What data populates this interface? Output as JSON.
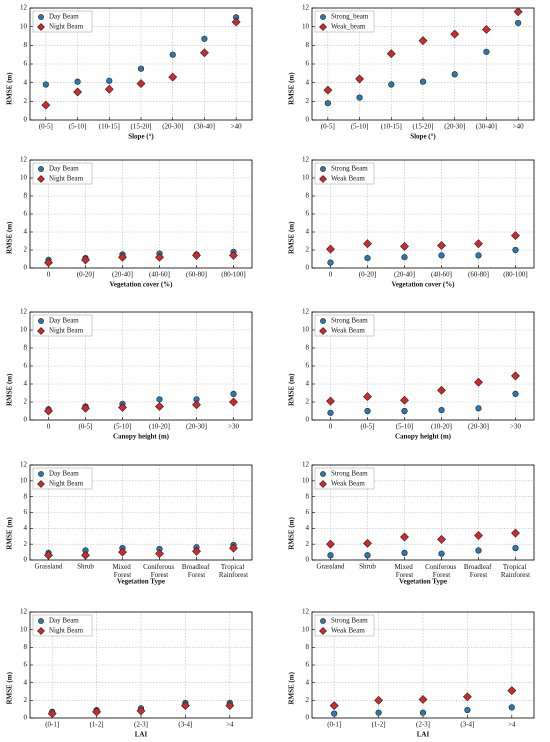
{
  "chart_data": [
    {
      "type": "scatter",
      "x_label": "Slope (°)",
      "y_label": "RMSE (m)",
      "categories": [
        "(0-5]",
        "(5-10]",
        "(10-15]",
        "(15-20]",
        "(20-30]",
        "(30-40]",
        ">40"
      ],
      "ylim": [
        0,
        12
      ],
      "yticks": [
        0,
        2,
        4,
        6,
        8,
        10,
        12
      ],
      "grid": true,
      "legend": "upper left",
      "series": [
        {
          "name": "Day Beam",
          "color": "#2878b5",
          "marker": "circle",
          "values": [
            3.8,
            4.1,
            4.2,
            5.5,
            7.0,
            8.7,
            11.0
          ]
        },
        {
          "name": "Night Beam",
          "color": "#d62728",
          "marker": "diamond",
          "values": [
            1.6,
            3.0,
            3.3,
            3.9,
            4.6,
            7.2,
            10.5
          ]
        }
      ]
    },
    {
      "type": "scatter",
      "x_label": "Slope (°)",
      "y_label": "RMSE (m)",
      "categories": [
        "(0-5]",
        "(5-10]",
        "(10-15]",
        "(15-20]",
        "(20-30]",
        "(30-40]",
        ">40"
      ],
      "ylim": [
        0,
        12
      ],
      "yticks": [
        0,
        2,
        4,
        6,
        8,
        10,
        12
      ],
      "grid": true,
      "legend": "upper left",
      "series": [
        {
          "name": "Strong_beam",
          "color": "#2878b5",
          "marker": "circle",
          "values": [
            1.8,
            2.4,
            3.8,
            4.1,
            4.9,
            7.3,
            10.4
          ]
        },
        {
          "name": "Weak_beam",
          "color": "#d62728",
          "marker": "diamond",
          "values": [
            3.2,
            4.4,
            7.1,
            8.5,
            9.2,
            9.7,
            11.6
          ]
        }
      ]
    },
    {
      "type": "scatter",
      "x_label": "Vegetation cover (%)",
      "y_label": "RMSE (m)",
      "categories": [
        "0",
        "(0-20]",
        "(20-40]",
        "(40-60]",
        "(60-80]",
        "(80-100]"
      ],
      "ylim": [
        0,
        12
      ],
      "yticks": [
        0,
        2,
        4,
        6,
        8,
        10,
        12
      ],
      "grid": true,
      "legend": "upper left",
      "series": [
        {
          "name": "Day Beam",
          "color": "#2878b5",
          "marker": "circle",
          "values": [
            0.9,
            1.1,
            1.5,
            1.6,
            1.5,
            1.8
          ]
        },
        {
          "name": "Night Beam",
          "color": "#d62728",
          "marker": "diamond",
          "values": [
            0.6,
            0.9,
            1.2,
            1.2,
            1.4,
            1.4
          ]
        }
      ]
    },
    {
      "type": "scatter",
      "x_label": "Vegetation cover (%)",
      "y_label": "RMSE (m)",
      "categories": [
        "0",
        "(0-20]",
        "(20-40]",
        "(40-60]",
        "(60-80]",
        "(80-100]"
      ],
      "ylim": [
        0,
        12
      ],
      "yticks": [
        0,
        2,
        4,
        6,
        8,
        10,
        12
      ],
      "grid": true,
      "legend": "upper left",
      "series": [
        {
          "name": "Strong Beam",
          "color": "#2878b5",
          "marker": "circle",
          "values": [
            0.6,
            1.1,
            1.2,
            1.4,
            1.4,
            2.0
          ]
        },
        {
          "name": "Weak Beam",
          "color": "#d62728",
          "marker": "diamond",
          "values": [
            2.1,
            2.7,
            2.4,
            2.5,
            2.7,
            3.6
          ]
        }
      ]
    },
    {
      "type": "scatter",
      "x_label": "Canopy height (m)",
      "y_label": "RMSE (m)",
      "categories": [
        "0",
        "(0-5]",
        "(5-10]",
        "(10-20]",
        "(20-30]",
        ">30"
      ],
      "ylim": [
        0,
        12
      ],
      "yticks": [
        0,
        2,
        4,
        6,
        8,
        10,
        12
      ],
      "grid": true,
      "legend": "upper left",
      "series": [
        {
          "name": "Day Beam",
          "color": "#2878b5",
          "marker": "circle",
          "values": [
            1.2,
            1.5,
            1.8,
            2.3,
            2.3,
            2.9
          ]
        },
        {
          "name": "Night Beam",
          "color": "#d62728",
          "marker": "diamond",
          "values": [
            1.0,
            1.3,
            1.4,
            1.5,
            1.7,
            2.0
          ]
        }
      ]
    },
    {
      "type": "scatter",
      "x_label": "Canopy height (m)",
      "y_label": "RMSE (m)",
      "categories": [
        "0",
        "(0-5]",
        "(5-10]",
        "(10-20]",
        "(20-30]",
        ">30"
      ],
      "ylim": [
        0,
        12
      ],
      "yticks": [
        0,
        2,
        4,
        6,
        8,
        10,
        12
      ],
      "grid": true,
      "legend": "upper left",
      "series": [
        {
          "name": "Strong Beam",
          "color": "#2878b5",
          "marker": "circle",
          "values": [
            0.8,
            1.0,
            1.0,
            1.1,
            1.3,
            2.9
          ]
        },
        {
          "name": "Weak Beam",
          "color": "#d62728",
          "marker": "diamond",
          "values": [
            2.1,
            2.6,
            2.2,
            3.3,
            4.2,
            4.9
          ]
        }
      ]
    },
    {
      "type": "scatter",
      "x_label": "Vegetation Type",
      "y_label": "RMSE (m)",
      "categories": [
        "Grassland",
        "Shrub",
        "Mixed Forest",
        "Coniferous Forest",
        "Broadleaf Forest",
        "Tropical Rainforest"
      ],
      "ylim": [
        0,
        12
      ],
      "yticks": [
        0,
        2,
        4,
        6,
        8,
        10,
        12
      ],
      "grid": true,
      "legend": "upper left",
      "series": [
        {
          "name": "Day Beam",
          "color": "#2878b5",
          "marker": "circle",
          "values": [
            0.9,
            1.2,
            1.5,
            1.4,
            1.6,
            1.9
          ]
        },
        {
          "name": "Night Beam",
          "color": "#d62728",
          "marker": "diamond",
          "values": [
            0.6,
            0.6,
            1.0,
            0.8,
            1.1,
            1.5
          ]
        }
      ]
    },
    {
      "type": "scatter",
      "x_label": "Vegetation Type",
      "y_label": "RMSE (m)",
      "categories": [
        "Grassland",
        "Shrub",
        "Mixed Forest",
        "Coniferous Forest",
        "Broadleaf Forest",
        "Tropical Rainforest"
      ],
      "ylim": [
        0,
        12
      ],
      "yticks": [
        0,
        2,
        4,
        6,
        8,
        10,
        12
      ],
      "grid": true,
      "legend": "upper left",
      "series": [
        {
          "name": "Strong Beam",
          "color": "#2878b5",
          "marker": "circle",
          "values": [
            0.6,
            0.6,
            0.9,
            0.8,
            1.2,
            1.5
          ]
        },
        {
          "name": "Weak Beam",
          "color": "#d62728",
          "marker": "diamond",
          "values": [
            2.0,
            2.1,
            2.9,
            2.6,
            3.1,
            3.4
          ]
        }
      ]
    },
    {
      "type": "scatter",
      "x_label": "LAI",
      "y_label": "RMSE (m)",
      "categories": [
        "(0-1]",
        "(1-2]",
        "(2-3]",
        "(3-4]",
        ">4"
      ],
      "ylim": [
        0,
        12
      ],
      "yticks": [
        0,
        2,
        4,
        6,
        8,
        10,
        12
      ],
      "grid": true,
      "legend": "upper left",
      "series": [
        {
          "name": "Day Beam",
          "color": "#2878b5",
          "marker": "circle",
          "values": [
            0.7,
            0.9,
            1.1,
            1.7,
            1.7
          ]
        },
        {
          "name": "Night Beam",
          "color": "#d62728",
          "marker": "diamond",
          "values": [
            0.5,
            0.7,
            0.8,
            1.4,
            1.4
          ]
        }
      ]
    },
    {
      "type": "scatter",
      "x_label": "LAI",
      "y_label": "RMSE (m)",
      "categories": [
        "(0-1]",
        "(1-2]",
        "(2-3]",
        "(3-4]",
        ">4"
      ],
      "ylim": [
        0,
        12
      ],
      "yticks": [
        0,
        2,
        4,
        6,
        8,
        10,
        12
      ],
      "grid": true,
      "legend": "upper left",
      "series": [
        {
          "name": "Strong Beam",
          "color": "#2878b5",
          "marker": "circle",
          "values": [
            0.5,
            0.6,
            0.6,
            0.9,
            1.2
          ]
        },
        {
          "name": "Weak Beam",
          "color": "#d62728",
          "marker": "diamond",
          "values": [
            1.4,
            2.0,
            2.1,
            2.4,
            3.1
          ]
        }
      ]
    }
  ]
}
